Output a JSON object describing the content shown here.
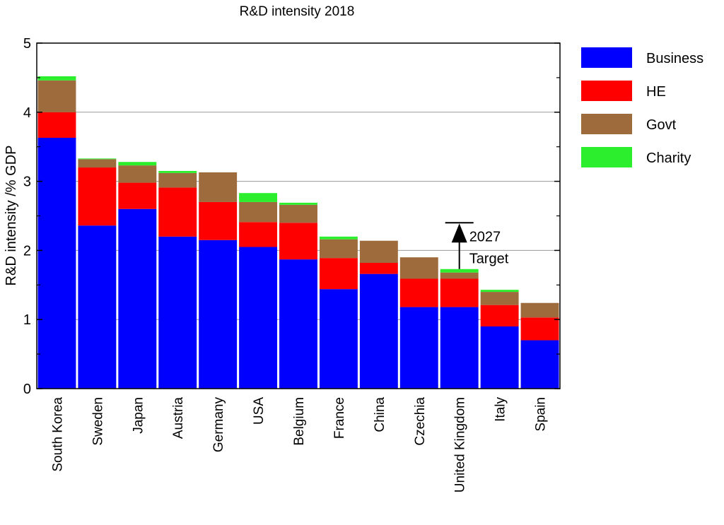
{
  "chart_data": {
    "type": "bar",
    "stacked": true,
    "title": "R&D intensity 2018",
    "ylabel": "R&D intensity /% GDP",
    "xlabel": "",
    "ylim": [
      0,
      5
    ],
    "yticks": [
      "0",
      "1",
      "2",
      "3",
      "4",
      "5"
    ],
    "grid": true,
    "legend_position": "right",
    "categories": [
      "South Korea",
      "Sweden",
      "Japan",
      "Austria",
      "Germany",
      "USA",
      "Belgium",
      "France",
      "China",
      "Czechia",
      "United Kingdom",
      "Italy",
      "Spain"
    ],
    "series": [
      {
        "name": "Business",
        "color": "#0000ff",
        "values": [
          3.63,
          2.36,
          2.6,
          2.2,
          2.15,
          2.05,
          1.87,
          1.44,
          1.66,
          1.18,
          1.18,
          0.9,
          0.7
        ]
      },
      {
        "name": "HE",
        "color": "#ff0000",
        "values": [
          0.37,
          0.84,
          0.38,
          0.71,
          0.55,
          0.36,
          0.53,
          0.45,
          0.16,
          0.41,
          0.41,
          0.31,
          0.33
        ]
      },
      {
        "name": "Govt",
        "color": "#9e6b3c",
        "values": [
          0.46,
          0.12,
          0.25,
          0.21,
          0.43,
          0.29,
          0.26,
          0.27,
          0.32,
          0.31,
          0.09,
          0.19,
          0.21
        ]
      },
      {
        "name": "Charity",
        "color": "#2dee2d",
        "values": [
          0.06,
          0.01,
          0.05,
          0.03,
          0.0,
          0.13,
          0.03,
          0.04,
          0.0,
          0.0,
          0.05,
          0.03,
          0.0
        ]
      }
    ],
    "annotation": {
      "label_line1": "2027",
      "label_line2": "Target",
      "category": "United Kingdom",
      "from": 1.73,
      "to": 2.4
    }
  }
}
